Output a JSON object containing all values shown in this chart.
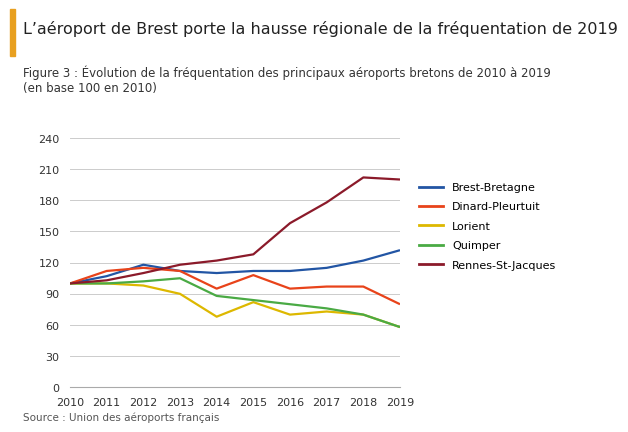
{
  "title": "L’aéroport de Brest porte la hausse régionale de la fréquentation de 2019",
  "subtitle": "Figure 3 : Évolution de la fréquentation des principaux aéroports bretons de 2010 à 2019\n(en base 100 en 2010)",
  "source": "Source : Union des aéroports français",
  "years": [
    2010,
    2011,
    2012,
    2013,
    2014,
    2015,
    2016,
    2017,
    2018,
    2019
  ],
  "series": {
    "Brest-Bretagne": [
      100,
      107,
      118,
      112,
      110,
      112,
      112,
      115,
      122,
      132
    ],
    "Dinard-Pleurtuit": [
      100,
      112,
      115,
      112,
      95,
      108,
      95,
      97,
      97,
      80
    ],
    "Lorient": [
      100,
      100,
      98,
      90,
      68,
      82,
      70,
      73,
      70,
      58
    ],
    "Quimper": [
      100,
      100,
      102,
      105,
      88,
      84,
      80,
      76,
      70,
      58
    ],
    "Rennes-St-Jacques": [
      100,
      103,
      110,
      118,
      122,
      128,
      158,
      178,
      202,
      200
    ]
  },
  "colors": {
    "Brest-Bretagne": "#2255a4",
    "Dinard-Pleurtuit": "#e8431a",
    "Lorient": "#ddb800",
    "Quimper": "#4aaa44",
    "Rennes-St-Jacques": "#8b1a2a"
  },
  "ylim": [
    0,
    250
  ],
  "yticks": [
    0,
    30,
    60,
    90,
    120,
    150,
    180,
    210,
    240
  ],
  "background_color": "#ffffff",
  "title_bar_color": "#e8a020",
  "title_fontsize": 11.5,
  "subtitle_fontsize": 8.5,
  "source_fontsize": 7.5,
  "tick_fontsize": 8,
  "legend_fontsize": 8
}
